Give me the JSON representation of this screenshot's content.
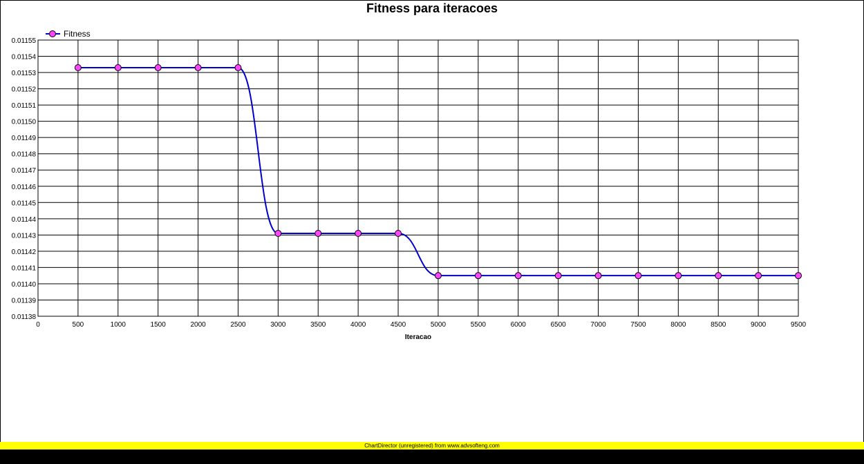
{
  "chart_data": {
    "type": "line",
    "title": "Fitness para iteracoes",
    "xlabel": "Iteracao",
    "ylabel": "",
    "xlim": [
      0,
      9500
    ],
    "ylim": [
      0.01138,
      0.01155
    ],
    "x_ticks": [
      "0",
      "500",
      "1000",
      "1500",
      "2000",
      "2500",
      "3000",
      "3500",
      "4000",
      "4500",
      "5000",
      "5500",
      "6000",
      "6500",
      "7000",
      "7500",
      "8000",
      "8500",
      "9000",
      "9500"
    ],
    "y_ticks": [
      "0.01138",
      "0.01139",
      "0.01140",
      "0.01141",
      "0.01142",
      "0.01143",
      "0.01144",
      "0.01145",
      "0.01146",
      "0.01147",
      "0.01148",
      "0.01149",
      "0.01150",
      "0.01151",
      "0.01152",
      "0.01153",
      "0.01154",
      "0.01155"
    ],
    "grid": true,
    "legend_position": "top-left",
    "series": [
      {
        "name": "Fitness",
        "line_color": "#0000cc",
        "marker_color": "#ff44ff",
        "x": [
          500,
          1000,
          1500,
          2000,
          2500,
          3000,
          3500,
          4000,
          4500,
          5000,
          5500,
          6000,
          6500,
          7000,
          7500,
          8000,
          8500,
          9000,
          9500
        ],
        "values": [
          0.011533,
          0.011533,
          0.011533,
          0.011533,
          0.011533,
          0.011431,
          0.011431,
          0.011431,
          0.011431,
          0.011405,
          0.011405,
          0.011405,
          0.011405,
          0.011405,
          0.011405,
          0.011405,
          0.011405,
          0.011405,
          0.011405
        ]
      }
    ]
  },
  "footer": {
    "watermark": "ChartDirector (unregistered) from www.advsofteng.com",
    "bar_color": "#ffff00"
  }
}
